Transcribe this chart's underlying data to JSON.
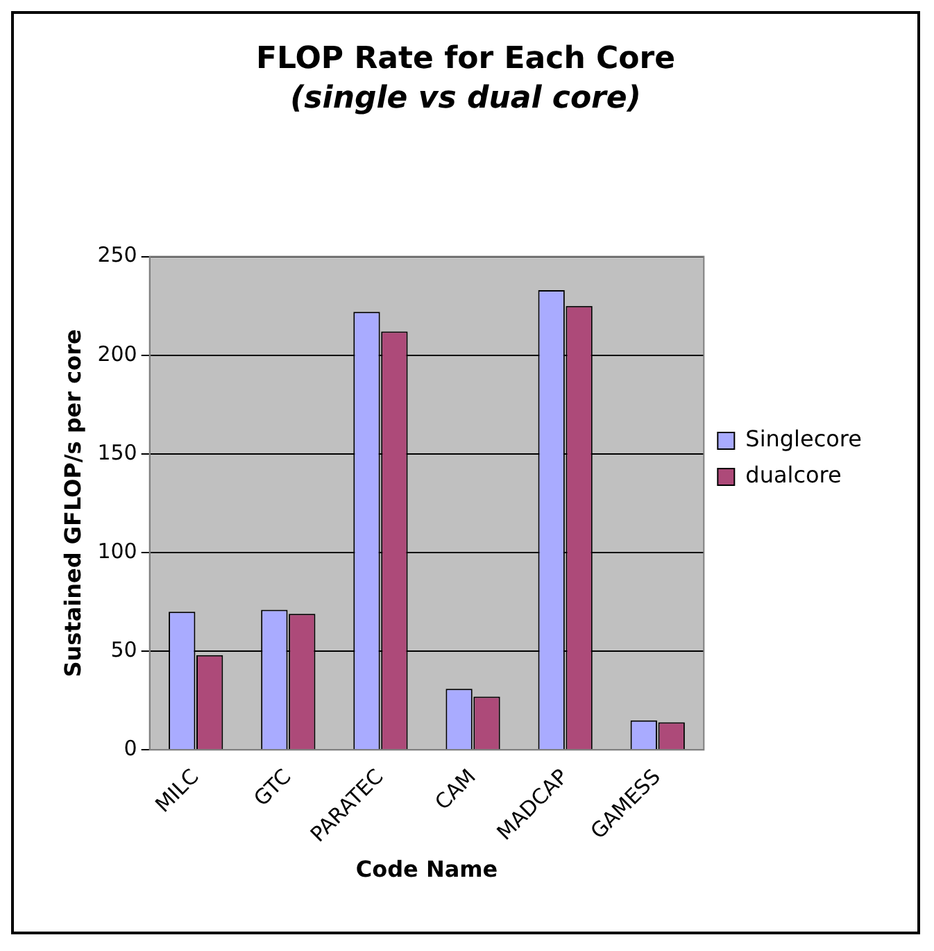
{
  "chart_data": {
    "type": "bar",
    "title": "FLOP Rate for Each Core",
    "subtitle": "(single vs dual core)",
    "xlabel": "Code Name",
    "ylabel": "Sustained GFLOP/s per core",
    "categories": [
      "MILC",
      "GTC",
      "PARATEC",
      "CAM",
      "MADCAP",
      "GAMESS"
    ],
    "series": [
      {
        "name": "Singlecore",
        "color": "#a9abff",
        "values": [
          70,
          71,
          222,
          31,
          233,
          15
        ]
      },
      {
        "name": "dualcore",
        "color": "#ad4a79",
        "values": [
          48,
          69,
          212,
          27,
          225,
          14
        ]
      }
    ],
    "ylim": [
      0,
      250
    ],
    "yticks": [
      0,
      50,
      100,
      150,
      200,
      250
    ],
    "grid": "y",
    "legend": "right"
  }
}
